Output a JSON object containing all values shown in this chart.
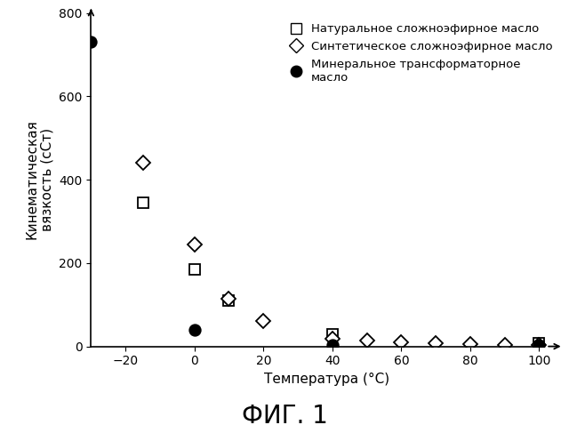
{
  "title": "ФИГ. 1",
  "xlabel": "Температура (°C)",
  "ylabel": "Кинематическая\nвязкость (сСт)",
  "xlim": [
    -30,
    107
  ],
  "ylim": [
    0,
    800
  ],
  "xticks": [
    -20,
    0,
    20,
    40,
    60,
    80,
    100
  ],
  "yticks": [
    0,
    200,
    400,
    600,
    800
  ],
  "series_natural": {
    "x": [
      -15,
      0,
      10,
      40,
      100
    ],
    "y": [
      345,
      185,
      110,
      30,
      8
    ],
    "label": "Натуральное сложноэфирное масло",
    "marker": "s",
    "color": "black",
    "facecolor": "white",
    "markersize": 8
  },
  "series_synthetic": {
    "x": [
      -15,
      0,
      10,
      20,
      40,
      50,
      60,
      70,
      80,
      90,
      100
    ],
    "y": [
      440,
      245,
      115,
      60,
      18,
      14,
      10,
      7,
      5,
      4,
      3
    ],
    "label": "Синтетическое сложноэфирное масло",
    "marker": "D",
    "color": "black",
    "facecolor": "white",
    "markersize": 8
  },
  "series_mineral": {
    "x": [
      -30,
      0,
      40,
      100
    ],
    "y": [
      730,
      40,
      3,
      3
    ],
    "label": "Минеральное трансформаторное\nмасло",
    "marker": "o",
    "color": "black",
    "facecolor": "black",
    "markersize": 9
  },
  "background_color": "#ffffff",
  "title_fontsize": 20,
  "label_fontsize": 11,
  "tick_fontsize": 10,
  "legend_fontsize": 9.5
}
